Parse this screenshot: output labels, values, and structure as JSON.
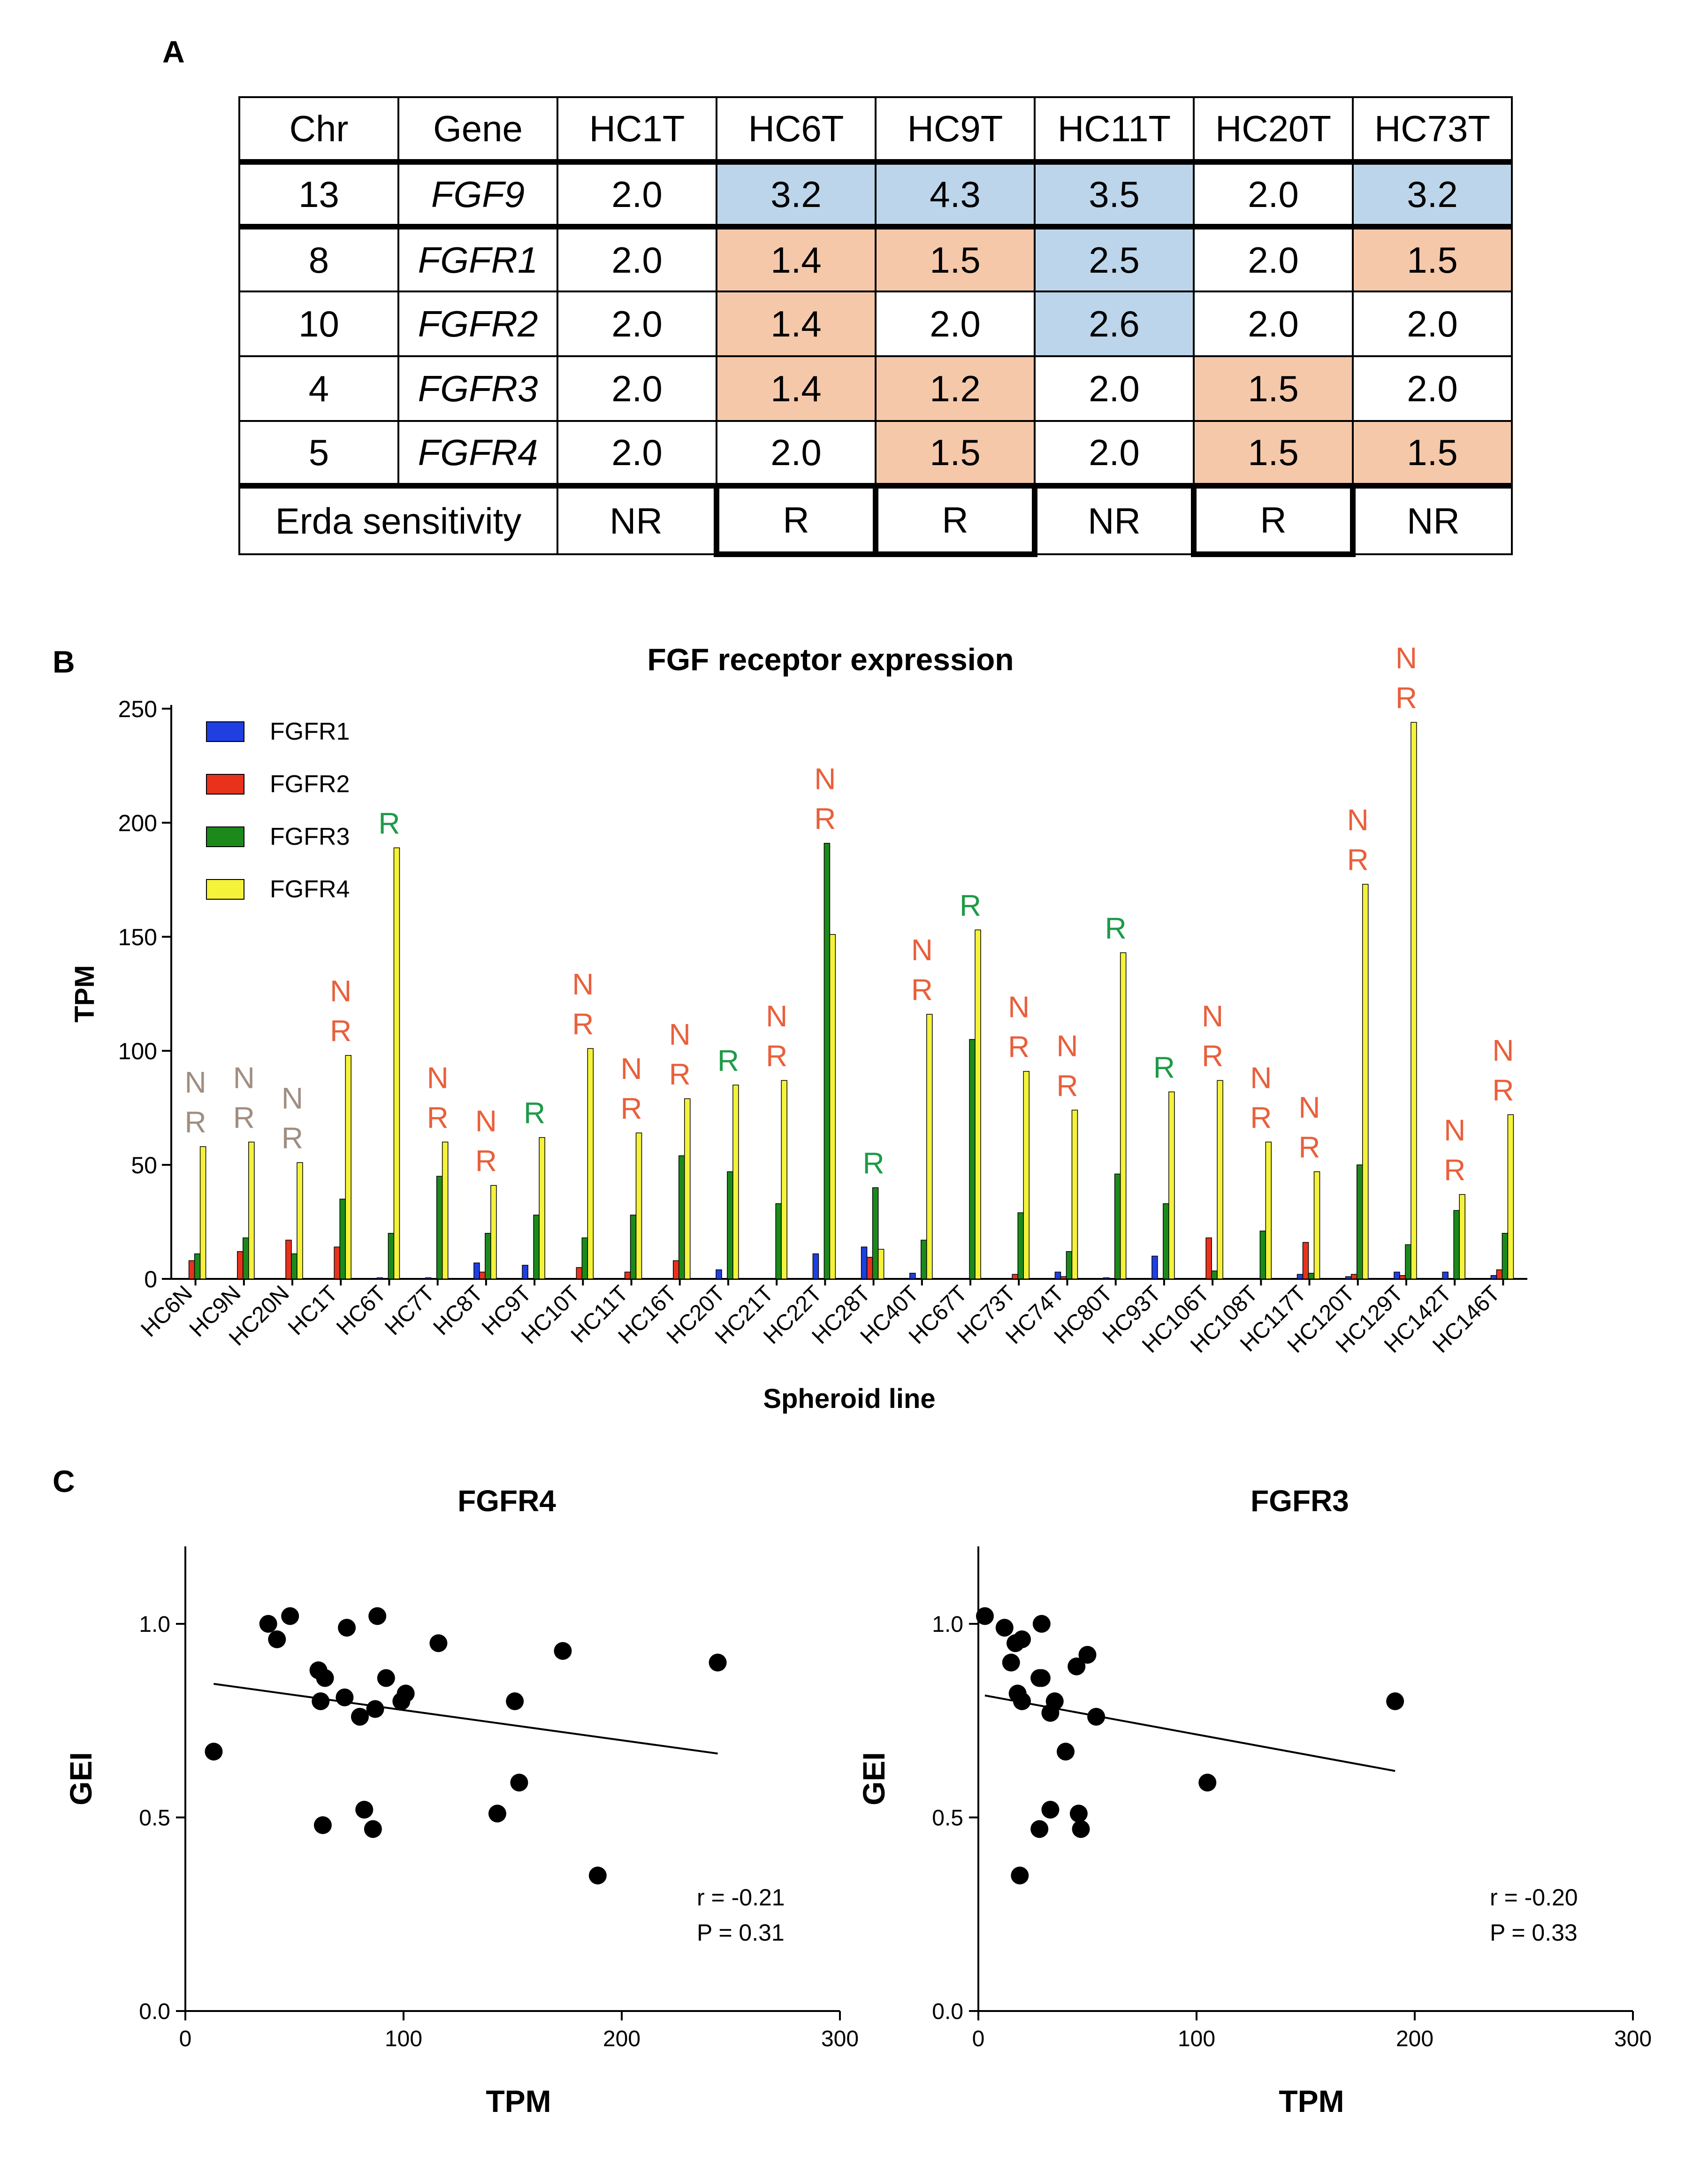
{
  "panels": {
    "a": "A",
    "b": "B",
    "c": "C"
  },
  "table": {
    "headers": [
      "Chr",
      "Gene",
      "HC1T",
      "HC6T",
      "HC9T",
      "HC11T",
      "HC20T",
      "HC73T"
    ],
    "rows": [
      {
        "chr": "13",
        "gene": "FGF9",
        "values": [
          "2.0",
          "3.2",
          "4.3",
          "3.5",
          "2.0",
          "3.2"
        ],
        "shade": [
          "",
          "blue",
          "blue",
          "blue",
          "",
          "blue"
        ]
      },
      {
        "chr": "8",
        "gene": "FGFR1",
        "values": [
          "2.0",
          "1.4",
          "1.5",
          "2.5",
          "2.0",
          "1.5"
        ],
        "shade": [
          "",
          "pink",
          "pink",
          "blue",
          "",
          "pink"
        ]
      },
      {
        "chr": "10",
        "gene": "FGFR2",
        "values": [
          "2.0",
          "1.4",
          "2.0",
          "2.6",
          "2.0",
          "2.0"
        ],
        "shade": [
          "",
          "pink",
          "",
          "blue",
          "",
          ""
        ]
      },
      {
        "chr": "4",
        "gene": "FGFR3",
        "values": [
          "2.0",
          "1.4",
          "1.2",
          "2.0",
          "1.5",
          "2.0"
        ],
        "shade": [
          "",
          "pink",
          "pink",
          "",
          "pink",
          ""
        ]
      },
      {
        "chr": "5",
        "gene": "FGFR4",
        "values": [
          "2.0",
          "2.0",
          "1.5",
          "2.0",
          "1.5",
          "1.5"
        ],
        "shade": [
          "",
          "",
          "pink",
          "",
          "pink",
          "pink"
        ]
      }
    ],
    "erda_label": "Erda sensitivity",
    "erda": [
      "NR",
      "R",
      "R",
      "NR",
      "R",
      "NR"
    ]
  },
  "colors": {
    "FGFR1": "#1f3fe0",
    "FGFR2": "#e8321c",
    "FGFR3": "#1b8a1b",
    "FGFR4": "#f4f23a",
    "nr_gray": "#a08e82",
    "nr_orange": "#e8603c",
    "r_green": "#1e9a48",
    "blue_cell": "#bcd5ea",
    "pink_cell": "#f5c8aa"
  },
  "chart_data": [
    {
      "type": "bar",
      "title": "FGF receptor expression",
      "xlabel": "Spheroid line",
      "ylabel": "TPM",
      "ylim": [
        0,
        250
      ],
      "yticks": [
        0,
        50,
        100,
        150,
        200,
        250
      ],
      "categories": [
        "HC6N",
        "HC9N",
        "HC20N",
        "HC1T",
        "HC6T",
        "HC7T",
        "HC8T",
        "HC9T",
        "HC10T",
        "HC11T",
        "HC16T",
        "HC20T",
        "HC21T",
        "HC22T",
        "HC28T",
        "HC40T",
        "HC67T",
        "HC73T",
        "HC74T",
        "HC80T",
        "HC93T",
        "HC106T",
        "HC108T",
        "HC117T",
        "HC120T",
        "HC129T",
        "HC142T",
        "HC146T"
      ],
      "series": [
        {
          "name": "FGFR1",
          "values": [
            0,
            0,
            0,
            0,
            0.5,
            0.5,
            7,
            6,
            0,
            0,
            0,
            4,
            0,
            11,
            14,
            2.5,
            0,
            0,
            3,
            0.5,
            10,
            0,
            0,
            2,
            1,
            3,
            3,
            1.5
          ]
        },
        {
          "name": "FGFR2",
          "values": [
            8,
            12,
            17,
            14,
            0,
            0,
            3,
            0,
            5,
            3,
            8,
            0,
            0,
            0,
            9.5,
            0,
            0,
            2,
            1,
            0,
            0,
            18,
            0,
            16,
            2,
            1.5,
            0,
            4
          ]
        },
        {
          "name": "FGFR3",
          "values": [
            11,
            18,
            11,
            35,
            20,
            45,
            20,
            28,
            18,
            28,
            54,
            47,
            33,
            191,
            40,
            17,
            105,
            29,
            12,
            46,
            33,
            3.5,
            21,
            2.5,
            50,
            15,
            30,
            20
          ]
        },
        {
          "name": "FGFR4",
          "values": [
            58,
            60,
            51,
            98,
            189,
            60,
            41,
            62,
            101,
            64,
            79,
            85,
            87,
            151,
            13,
            116,
            153,
            91,
            74,
            143,
            82,
            87,
            60,
            47,
            173,
            244,
            37,
            72
          ]
        }
      ],
      "response": [
        "NR",
        "NR",
        "NR",
        "NR",
        "R",
        "NR",
        "NR",
        "R",
        "NR",
        "NR",
        "NR",
        "R",
        "NR",
        "NR",
        "R",
        "NR",
        "R",
        "NR",
        "NR",
        "R",
        "R",
        "NR",
        "NR",
        "NR",
        "NR",
        "NR",
        "NR",
        "NR"
      ],
      "response_color": [
        "gray",
        "gray",
        "gray",
        "orange",
        "green",
        "orange",
        "orange",
        "green",
        "orange",
        "orange",
        "orange",
        "green",
        "orange",
        "orange",
        "green",
        "orange",
        "green",
        "orange",
        "orange",
        "green",
        "green",
        "orange",
        "orange",
        "orange",
        "orange",
        "orange",
        "orange",
        "orange"
      ],
      "legend": [
        "FGFR1",
        "FGFR2",
        "FGFR3",
        "FGFR4"
      ],
      "legend_position": "top-left"
    },
    {
      "type": "scatter",
      "title": "FGFR4",
      "xlabel": "TPM",
      "ylabel": "GEI",
      "xlim": [
        0,
        300
      ],
      "ylim": [
        0,
        1.2
      ],
      "xticks": [
        0,
        100,
        200,
        300
      ],
      "yticks": [
        "0.0",
        "0.5",
        "1.0"
      ],
      "points": [
        [
          13,
          0.67
        ],
        [
          38,
          1.0
        ],
        [
          42,
          0.96
        ],
        [
          48,
          1.02
        ],
        [
          61,
          0.88
        ],
        [
          62,
          0.8
        ],
        [
          63,
          0.48
        ],
        [
          64,
          0.86
        ],
        [
          73,
          0.81
        ],
        [
          74,
          0.99
        ],
        [
          80,
          0.76
        ],
        [
          82,
          0.52
        ],
        [
          86,
          0.47
        ],
        [
          87,
          0.78
        ],
        [
          88,
          1.02
        ],
        [
          92,
          0.86
        ],
        [
          99,
          0.8
        ],
        [
          101,
          0.82
        ],
        [
          116,
          0.95
        ],
        [
          143,
          0.51
        ],
        [
          151,
          0.8
        ],
        [
          153,
          0.59
        ],
        [
          173,
          0.93
        ],
        [
          189,
          0.35
        ],
        [
          244,
          0.9
        ]
      ],
      "fit": [
        [
          13,
          0.845
        ],
        [
          244,
          0.665
        ]
      ],
      "stats": {
        "r": "r = -0.21",
        "p": "P = 0.31"
      }
    },
    {
      "type": "scatter",
      "title": "FGFR3",
      "xlabel": "TPM",
      "ylabel": "GEI",
      "xlim": [
        0,
        300
      ],
      "ylim": [
        0,
        1.2
      ],
      "xticks": [
        0,
        100,
        200,
        300
      ],
      "yticks": [
        "0.0",
        "0.5",
        "1.0"
      ],
      "points": [
        [
          3,
          1.02
        ],
        [
          12,
          0.99
        ],
        [
          15,
          0.9
        ],
        [
          17,
          0.95
        ],
        [
          18,
          0.82
        ],
        [
          19,
          0.35
        ],
        [
          20,
          0.96
        ],
        [
          20,
          0.8
        ],
        [
          28,
          0.47
        ],
        [
          28,
          0.86
        ],
        [
          29,
          1.0
        ],
        [
          29,
          0.86
        ],
        [
          33,
          0.77
        ],
        [
          33,
          0.52
        ],
        [
          35,
          0.8
        ],
        [
          40,
          0.67
        ],
        [
          45,
          0.89
        ],
        [
          46,
          0.51
        ],
        [
          47,
          0.47
        ],
        [
          50,
          0.92
        ],
        [
          54,
          0.76
        ],
        [
          105,
          0.59
        ],
        [
          191,
          0.8
        ]
      ],
      "fit": [
        [
          3,
          0.815
        ],
        [
          191,
          0.62
        ]
      ],
      "stats": {
        "r": "r = -0.20",
        "p": "P = 0.33"
      }
    }
  ]
}
